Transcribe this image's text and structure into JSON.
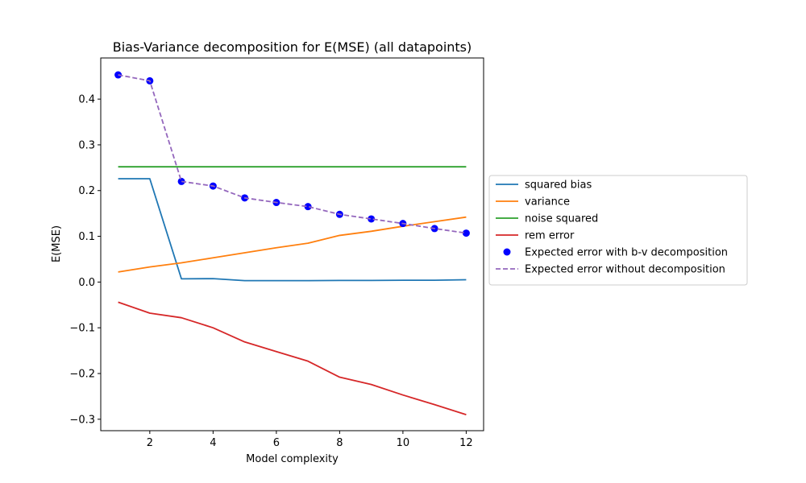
{
  "chart_data": {
    "type": "line",
    "title": "Bias-Variance decomposition for E(MSE) (all datapoints)",
    "xlabel": "Model complexity",
    "ylabel": "E(MSE)",
    "xlim": [
      0.45,
      12.55
    ],
    "ylim": [
      -0.325,
      0.49
    ],
    "x_ticks": [
      2,
      4,
      6,
      8,
      10,
      12
    ],
    "y_ticks": [
      -0.3,
      -0.2,
      -0.1,
      0.0,
      0.1,
      0.2,
      0.3,
      0.4
    ],
    "y_tick_labels": [
      "−0.3",
      "−0.2",
      "−0.1",
      "0.0",
      "0.1",
      "0.2",
      "0.3",
      "0.4"
    ],
    "legend_position": "outside-right",
    "x": [
      1,
      2,
      3,
      4,
      5,
      6,
      7,
      8,
      9,
      10,
      11,
      12
    ],
    "series": [
      {
        "name": "squared bias",
        "color": "#1f77b4",
        "style": "solid",
        "values": [
          0.226,
          0.226,
          0.007,
          0.0075,
          0.003,
          0.003,
          0.003,
          0.0035,
          0.0035,
          0.004,
          0.004,
          0.005
        ]
      },
      {
        "name": "variance",
        "color": "#ff7f0e",
        "style": "solid",
        "values": [
          0.022,
          0.033,
          0.042,
          0.053,
          0.064,
          0.075,
          0.085,
          0.102,
          0.111,
          0.122,
          0.132,
          0.142
        ]
      },
      {
        "name": "noise squared",
        "color": "#2ca02c",
        "style": "solid",
        "values": [
          0.252,
          0.252,
          0.252,
          0.252,
          0.252,
          0.252,
          0.252,
          0.252,
          0.252,
          0.252,
          0.252,
          0.252
        ]
      },
      {
        "name": "rem error",
        "color": "#d62728",
        "style": "solid",
        "values": [
          -0.044,
          -0.068,
          -0.078,
          -0.1,
          -0.131,
          -0.152,
          -0.173,
          -0.208,
          -0.224,
          -0.247,
          -0.268,
          -0.29
        ]
      },
      {
        "name": "Expected error with b-v decomposition",
        "color": "#0000ff",
        "style": "markers",
        "values": [
          0.453,
          0.44,
          0.22,
          0.21,
          0.184,
          0.174,
          0.165,
          0.148,
          0.138,
          0.128,
          0.117,
          0.107
        ]
      },
      {
        "name": "Expected error without decomposition",
        "color": "#9467bd",
        "style": "dashed",
        "values": [
          0.453,
          0.44,
          0.22,
          0.21,
          0.184,
          0.174,
          0.165,
          0.148,
          0.138,
          0.128,
          0.117,
          0.107
        ]
      }
    ]
  }
}
